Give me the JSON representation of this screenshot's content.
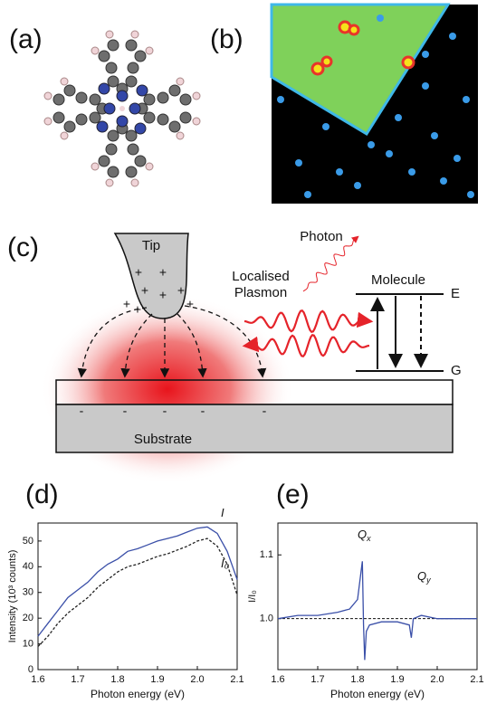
{
  "panel_labels": [
    "(a)",
    "(b)",
    "(c)",
    "(d)",
    "(e)"
  ],
  "diagram": {
    "tip": "Tip",
    "photon": "Photon",
    "plasmon": [
      "Localised",
      "Plasmon"
    ],
    "molecule": "Molecule",
    "upper_level": "E",
    "lower_level": "G",
    "substrate": "Substrate",
    "positive_charge": "+",
    "negative_charge": "-"
  },
  "chart_data": [
    {
      "type": "line",
      "x_label": "Photon energy (eV)",
      "y_label": "Intensity (10³ counts)",
      "xlim": [
        1.6,
        2.1
      ],
      "xticks": [
        1.6,
        1.7,
        1.8,
        1.9,
        {
          "value": 2,
          "label": "2.0"
        },
        2.1
      ],
      "ylim": [
        0,
        57
      ],
      "yticks": [
        0,
        10,
        20,
        30,
        40,
        50
      ],
      "x": [
        1.6,
        1.625,
        1.65,
        1.675,
        1.7,
        1.725,
        1.75,
        1.775,
        1.8,
        1.825,
        1.85,
        1.875,
        1.9,
        1.925,
        1.95,
        1.975,
        2.0,
        2.025,
        2.05,
        2.075,
        2.1
      ],
      "series": [
        {
          "name": "I",
          "color": "#3a4fa8",
          "dash": false,
          "values": [
            13,
            18,
            23,
            28,
            31,
            34,
            38,
            41,
            43,
            46,
            47,
            48.5,
            50,
            51,
            52,
            53.5,
            55,
            55.5,
            53,
            46,
            35
          ]
        },
        {
          "name": "I₀",
          "color": "#222222",
          "dash": true,
          "values": [
            9,
            13,
            18,
            22,
            25,
            28,
            32,
            35,
            38,
            40,
            41,
            42.5,
            44,
            45,
            46.5,
            48,
            50,
            51,
            48,
            41,
            29
          ]
        }
      ]
    },
    {
      "type": "line",
      "x_label": "Photon energy (eV)",
      "y_label": "I/I₀",
      "xlim": [
        1.6,
        2.1
      ],
      "xticks": [
        1.6,
        1.7,
        1.8,
        1.9,
        {
          "value": 2,
          "label": "2.0"
        },
        2.1
      ],
      "ylim": [
        0.92,
        1.15
      ],
      "yticks": [
        {
          "value": 1,
          "label": "1.0"
        },
        {
          "value": 1.1,
          "label": "1.1"
        }
      ],
      "hline": 1,
      "annotations": [
        {
          "text": "Q",
          "sub": "x"
        },
        {
          "text": "Q",
          "sub": "y"
        }
      ],
      "x": [
        1.6,
        1.65,
        1.7,
        1.75,
        1.78,
        1.8,
        1.81,
        1.812,
        1.815,
        1.818,
        1.822,
        1.83,
        1.86,
        1.9,
        1.93,
        1.935,
        1.94,
        1.96,
        2.0,
        2.05,
        2.1
      ],
      "series": [
        {
          "name": null,
          "color": "#3a4fa8",
          "dash": false,
          "values": [
            1.0,
            1.005,
            1.005,
            1.01,
            1.015,
            1.03,
            1.08,
            1.09,
            0.99,
            0.935,
            0.98,
            0.99,
            0.995,
            0.995,
            0.99,
            0.97,
            1.0,
            1.005,
            1.0,
            1.0,
            1.0
          ]
        }
      ]
    }
  ]
}
